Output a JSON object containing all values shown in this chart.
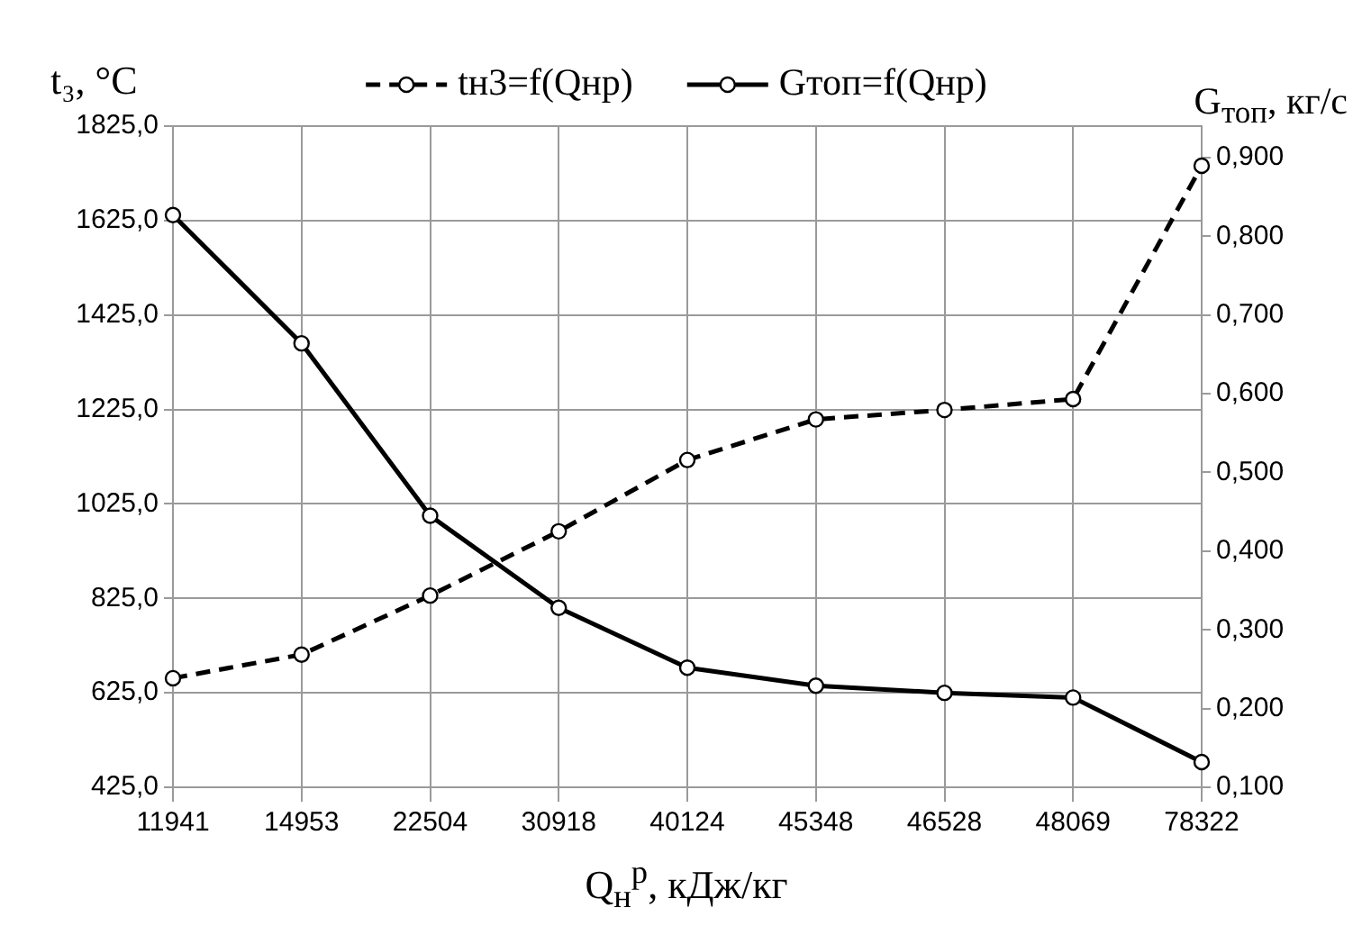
{
  "chart_data": {
    "type": "line",
    "xlabel": "Q$_{н}$$^{р}$, кДж/кг",
    "ylabel": "t₃, °C",
    "y2label": "G$_{топ}$, кг/с",
    "categories": [
      "11941",
      "14953",
      "22504",
      "30918",
      "40124",
      "45348",
      "46528",
      "48069",
      "78322"
    ],
    "series": [
      {
        "name": "tн3=f(Qнр)",
        "color": "#000000",
        "line_style": "dashed",
        "values": [
          656,
          706,
          831,
          967,
          1118,
          1204,
          1224,
          1247,
          1741
        ]
      },
      {
        "name": "Gтоп=f(Qнр)",
        "color": "#000000",
        "line_style": "solid",
        "axis": "y2",
        "values": [
          0.827,
          0.664,
          0.445,
          0.328,
          0.252,
          0.229,
          0.22,
          0.214,
          0.132
        ]
      }
    ],
    "ylim": [
      425,
      1825
    ],
    "yticks": [
      {
        "value": 425,
        "label": "425,0"
      },
      {
        "value": 625,
        "label": "625,0"
      },
      {
        "value": 825,
        "label": "825,0"
      },
      {
        "value": 1025,
        "label": "1025,0"
      },
      {
        "value": 1225,
        "label": "1225,0"
      },
      {
        "value": 1425,
        "label": "1425,0"
      },
      {
        "value": 1625,
        "label": "1625,0"
      },
      {
        "value": 1825,
        "label": "1825,0"
      }
    ],
    "y2lim": [
      0.1,
      0.94
    ],
    "y2ticks": [
      {
        "value": 0.1,
        "label": "0,100"
      },
      {
        "value": 0.2,
        "label": "0,200"
      },
      {
        "value": 0.3,
        "label": "0,300"
      },
      {
        "value": 0.4,
        "label": "0,400"
      },
      {
        "value": 0.5,
        "label": "0,500"
      },
      {
        "value": 0.6,
        "label": "0,600"
      },
      {
        "value": 0.7,
        "label": "0,700"
      },
      {
        "value": 0.8,
        "label": "0,800"
      },
      {
        "value": 0.9,
        "label": "0,900"
      }
    ],
    "grid": true,
    "legend": "top",
    "marker": "circle"
  }
}
